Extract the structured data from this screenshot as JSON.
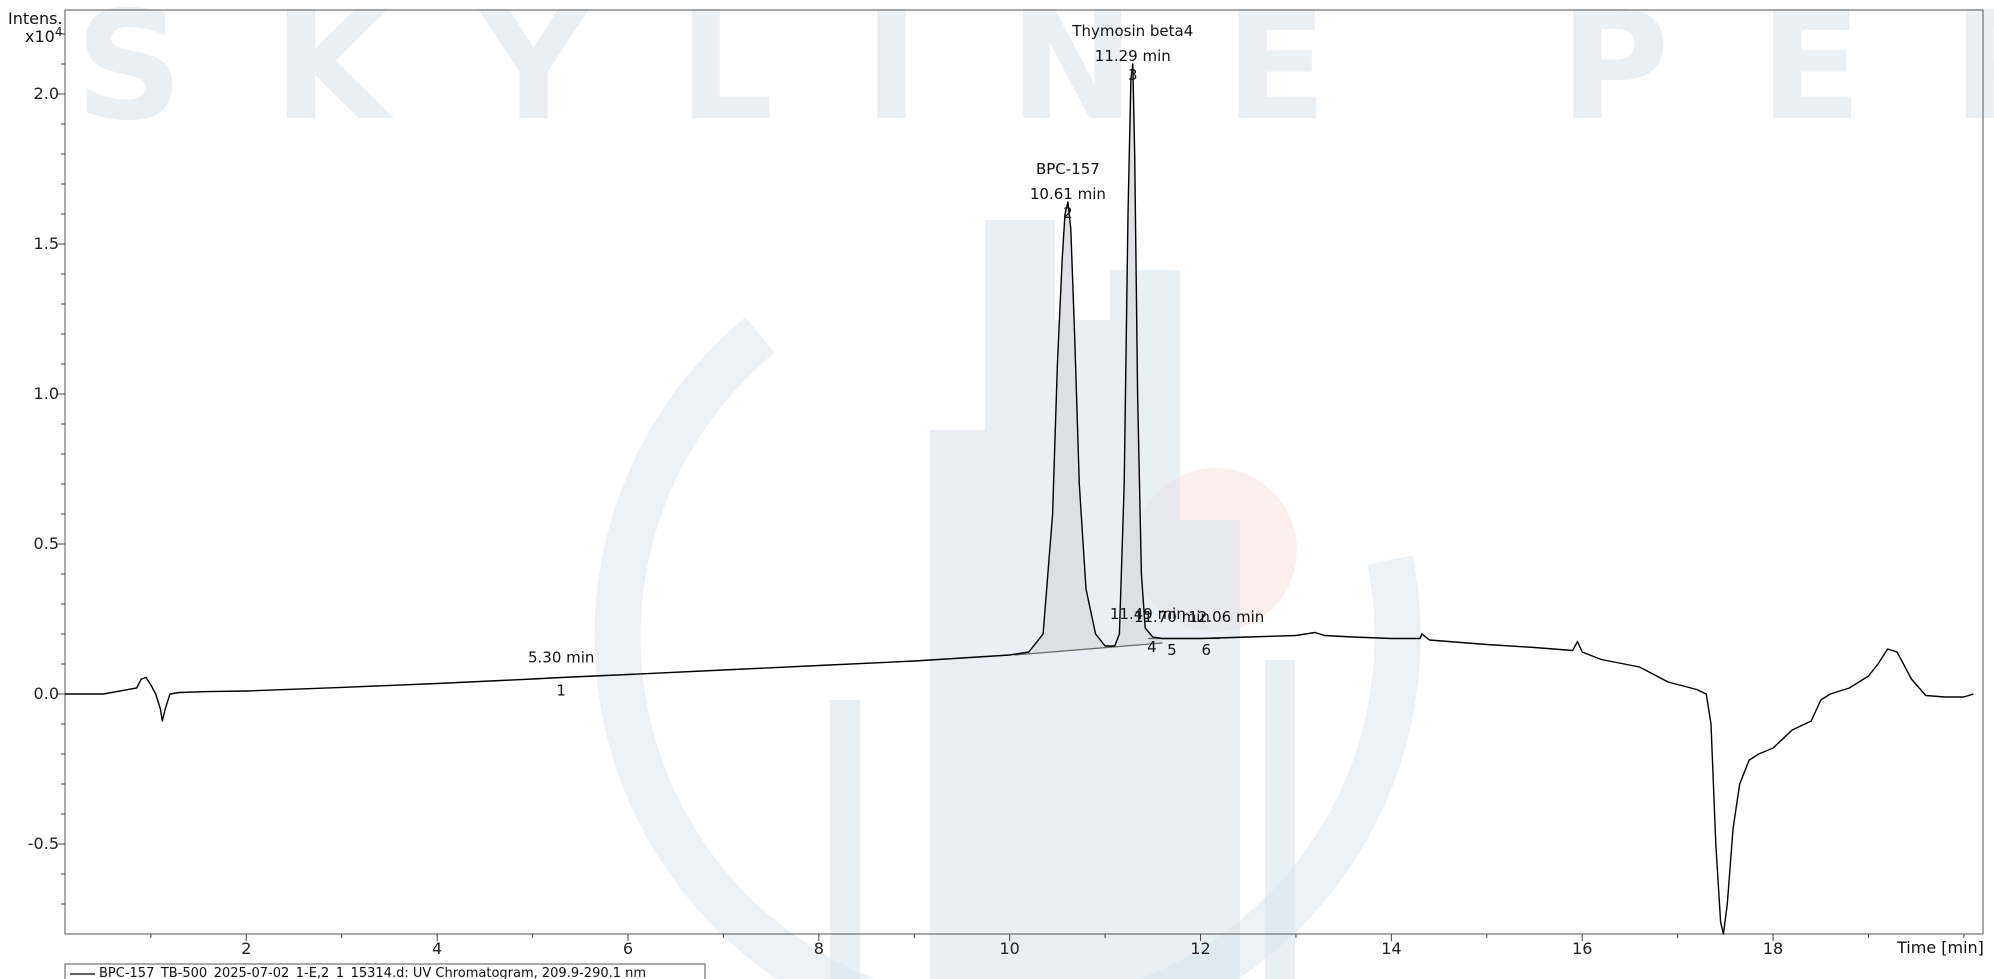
{
  "chart_data": {
    "type": "line",
    "title": "",
    "watermark": "SKYLINE PEPTIDES",
    "xlabel": "Time [min]",
    "ylabel": "Intens.",
    "y_multiplier": "x10",
    "y_exponent": "4",
    "xlim": [
      0.1,
      20.2
    ],
    "ylim": [
      -0.8,
      2.28
    ],
    "x_ticks": [
      2,
      4,
      6,
      8,
      10,
      12,
      14,
      16,
      18
    ],
    "y_ticks": [
      -0.5,
      0.0,
      0.5,
      1.0,
      1.5,
      2.0
    ],
    "y_tick_labels": [
      "-0.5",
      "0.0",
      "0.5",
      "1.0",
      "1.5",
      "2.0"
    ],
    "grid": false,
    "legend": {
      "position": "bottom-left",
      "entries": [
        "BPC-157_TB-500_2025-07-02_1-E,2_1_15314.d: UV Chromatogram, 209.9-290.1 nm"
      ]
    },
    "series": [
      {
        "name": "BPC-157_TB-500_2025-07-02_1-E,2_1_15314.d: UV Chromatogram, 209.9-290.1 nm",
        "color": "#000000",
        "x": [
          0.1,
          0.5,
          0.85,
          0.9,
          0.95,
          1.0,
          1.05,
          1.1,
          1.12,
          1.15,
          1.2,
          1.3,
          1.6,
          2.0,
          3.0,
          4.0,
          5.0,
          5.3,
          6.0,
          7.0,
          8.0,
          9.0,
          9.5,
          10.0,
          10.2,
          10.35,
          10.45,
          10.5,
          10.55,
          10.58,
          10.61,
          10.64,
          10.68,
          10.73,
          10.8,
          10.9,
          11.0,
          11.1,
          11.15,
          11.2,
          11.24,
          11.27,
          11.29,
          11.31,
          11.34,
          11.38,
          11.42,
          11.5,
          11.6,
          11.7,
          11.8,
          12.0,
          12.5,
          13.0,
          13.2,
          13.3,
          13.6,
          14.0,
          14.3,
          14.32,
          14.4,
          15.0,
          15.5,
          15.9,
          15.95,
          16.0,
          16.2,
          16.6,
          16.9,
          17.2,
          17.3,
          17.35,
          17.4,
          17.45,
          17.48,
          17.52,
          17.58,
          17.65,
          17.75,
          17.85,
          18.0,
          18.2,
          18.4,
          18.5,
          18.6,
          18.8,
          19.0,
          19.1,
          19.2,
          19.3,
          19.45,
          19.6,
          19.8,
          20.0,
          20.1
        ],
        "y": [
          0.0,
          0.0,
          0.02,
          0.05,
          0.055,
          0.03,
          0.0,
          -0.05,
          -0.09,
          -0.05,
          0.0,
          0.005,
          0.008,
          0.01,
          0.022,
          0.035,
          0.05,
          0.055,
          0.065,
          0.08,
          0.095,
          0.11,
          0.12,
          0.13,
          0.14,
          0.2,
          0.6,
          1.1,
          1.45,
          1.6,
          1.64,
          1.55,
          1.2,
          0.7,
          0.35,
          0.2,
          0.16,
          0.16,
          0.2,
          0.7,
          1.6,
          2.05,
          2.1,
          1.8,
          1.0,
          0.4,
          0.22,
          0.19,
          0.185,
          0.185,
          0.185,
          0.185,
          0.19,
          0.195,
          0.205,
          0.195,
          0.19,
          0.185,
          0.185,
          0.2,
          0.18,
          0.165,
          0.155,
          0.145,
          0.175,
          0.14,
          0.115,
          0.09,
          0.04,
          0.015,
          0.0,
          -0.1,
          -0.5,
          -0.76,
          -0.8,
          -0.7,
          -0.45,
          -0.3,
          -0.22,
          -0.2,
          -0.18,
          -0.12,
          -0.09,
          -0.02,
          0.0,
          0.02,
          0.06,
          0.1,
          0.15,
          0.14,
          0.05,
          -0.005,
          -0.01,
          -0.01,
          0.0
        ]
      }
    ],
    "peaks": [
      {
        "id": "1",
        "rt": 5.3,
        "rt_label": "5.30 min",
        "name": "",
        "height": 0.055
      },
      {
        "id": "2",
        "rt": 10.61,
        "rt_label": "10.61 min",
        "name": "BPC-157",
        "height": 1.64
      },
      {
        "id": "3",
        "rt": 11.29,
        "rt_label": "11.29 min",
        "name": "Thymosin beta4",
        "height": 2.1
      },
      {
        "id": "4",
        "rt": 11.49,
        "rt_label": "11.49 min",
        "name": "",
        "height": 0.2
      },
      {
        "id": "5",
        "rt": 11.7,
        "rt_label": "11.70 min",
        "name": "",
        "height": 0.19
      },
      {
        "id": "6",
        "rt": 12.06,
        "rt_label": "12.06 min",
        "name": "",
        "height": 0.19
      }
    ],
    "baselines": [
      {
        "x": [
          10.05,
          11.6
        ],
        "y": [
          0.13,
          0.17
        ]
      },
      {
        "x": [
          11.45,
          12.2
        ],
        "y": [
          0.185,
          0.185
        ]
      }
    ]
  }
}
